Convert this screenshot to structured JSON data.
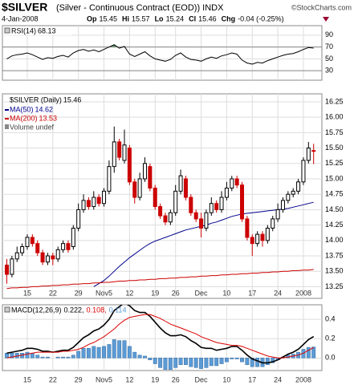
{
  "header": {
    "symbol": "$SILVER",
    "description": "(Silver - Continuous Contract (EOD)) INDX",
    "credit": "©StockCharts.com",
    "date": "4-Jan-2008",
    "quote_labels": [
      "Op",
      "Hi",
      "Lo",
      "Cl",
      "Chg"
    ],
    "change": "-0.04 (-0.25%)"
  },
  "chart_data": [
    {
      "type": "candlestick",
      "name": "$SILVER (Daily)",
      "extra_legend": "Volume undef",
      "xticks": [
        {
          "value": 4,
          "label": "15"
        },
        {
          "value": 9,
          "label": "22"
        },
        {
          "value": 14,
          "label": "29"
        },
        {
          "value": 19,
          "label": "Nov5"
        },
        {
          "value": 24,
          "label": "12"
        },
        {
          "value": 29,
          "label": "19"
        },
        {
          "value": 33,
          "label": "26"
        },
        {
          "value": 38,
          "label": "Dec"
        },
        {
          "value": 43,
          "label": "10"
        },
        {
          "value": 48,
          "label": "17"
        },
        {
          "value": 53,
          "label": "24"
        },
        {
          "value": 58,
          "label": "2008"
        }
      ],
      "ylim": [
        13.06,
        16.38
      ],
      "yticks": [
        {
          "value": 16.25,
          "label": "16.25"
        },
        {
          "value": 16,
          "label": "16.00"
        },
        {
          "value": 15.75,
          "label": "15.75"
        },
        {
          "value": 15.5,
          "label": "15.50"
        },
        {
          "value": 15.25,
          "label": "15.25"
        },
        {
          "value": 15,
          "label": "15.00"
        },
        {
          "value": 14.75,
          "label": "14.75"
        },
        {
          "value": 14.5,
          "label": "14.50"
        },
        {
          "value": 14.25,
          "label": "14.25"
        },
        {
          "value": 14,
          "label": "14.00"
        },
        {
          "value": 13.75,
          "label": "13.75"
        },
        {
          "value": 13.5,
          "label": "13.50"
        },
        {
          "value": 13.25,
          "label": "13.25"
        }
      ],
      "grid": true,
      "up_color": "#000000",
      "down_color": "#cc0000",
      "open": [
        13.6,
        13.45,
        13.7,
        13.8,
        13.9,
        14.05,
        13.95,
        13.8,
        13.65,
        13.75,
        13.7,
        13.85,
        13.95,
        13.9,
        14.2,
        14.5,
        14.65,
        14.55,
        14.7,
        14.6,
        14.8,
        15.2,
        15.6,
        15.3,
        15.5,
        14.95,
        14.7,
        15.0,
        15.2,
        14.85,
        14.55,
        14.4,
        14.3,
        14.45,
        14.8,
        15.0,
        14.7,
        14.45,
        14.35,
        14.2,
        14.45,
        14.6,
        14.5,
        14.7,
        14.85,
        15.0,
        14.9,
        14.35,
        14.05,
        13.95,
        14.1,
        14.0,
        14.2,
        14.35,
        14.5,
        14.65,
        14.75,
        14.8,
        14.95,
        15.3,
        15.45
      ],
      "high": [
        13.7,
        13.75,
        13.9,
        13.95,
        14.1,
        14.1,
        14.0,
        13.85,
        13.8,
        13.8,
        13.9,
        14.0,
        14.0,
        14.25,
        14.6,
        14.75,
        14.7,
        14.8,
        14.75,
        14.85,
        15.3,
        15.85,
        15.65,
        15.8,
        15.55,
        15.0,
        15.1,
        15.35,
        15.25,
        14.9,
        14.6,
        14.45,
        14.5,
        14.9,
        15.15,
        15.05,
        14.75,
        14.5,
        14.45,
        14.5,
        14.7,
        14.65,
        14.8,
        14.95,
        15.05,
        15.05,
        14.95,
        14.4,
        14.1,
        14.15,
        14.15,
        14.25,
        14.4,
        14.6,
        14.7,
        14.8,
        14.85,
        15.0,
        15.35,
        15.6,
        15.57
      ],
      "low": [
        13.3,
        13.4,
        13.65,
        13.75,
        13.85,
        13.9,
        13.75,
        13.6,
        13.6,
        13.6,
        13.65,
        13.8,
        13.8,
        13.85,
        14.15,
        14.45,
        14.5,
        14.5,
        14.55,
        14.55,
        14.75,
        15.1,
        15.3,
        15.25,
        14.9,
        14.6,
        14.65,
        14.95,
        14.8,
        14.5,
        14.35,
        14.25,
        14.25,
        14.4,
        14.75,
        14.65,
        14.4,
        14.3,
        14.05,
        14.15,
        14.4,
        14.45,
        14.45,
        14.65,
        14.8,
        14.85,
        14.3,
        14.0,
        13.75,
        13.9,
        13.9,
        13.95,
        14.15,
        14.3,
        14.45,
        14.6,
        14.7,
        14.75,
        14.9,
        15.25,
        15.24
      ],
      "close": [
        13.45,
        13.7,
        13.8,
        13.9,
        14.05,
        13.95,
        13.8,
        13.65,
        13.75,
        13.7,
        13.85,
        13.95,
        13.85,
        14.2,
        14.5,
        14.65,
        14.55,
        14.7,
        14.6,
        14.8,
        15.2,
        15.6,
        15.35,
        15.55,
        14.95,
        14.7,
        15.0,
        15.25,
        14.85,
        14.55,
        14.4,
        14.3,
        14.45,
        14.8,
        15.05,
        14.7,
        14.45,
        14.35,
        14.2,
        14.45,
        14.6,
        14.5,
        14.7,
        14.85,
        15.0,
        14.9,
        14.35,
        14.05,
        13.95,
        14.1,
        14.0,
        14.2,
        14.35,
        14.5,
        14.65,
        14.75,
        14.8,
        14.95,
        15.3,
        15.5,
        15.46
      ],
      "series": [
        {
          "name": "MA(50)",
          "color": "#00008b",
          "values": [
            null,
            null,
            null,
            null,
            null,
            null,
            null,
            null,
            null,
            null,
            null,
            null,
            null,
            null,
            null,
            null,
            null,
            13.25,
            13.3,
            13.35,
            13.42,
            13.5,
            13.58,
            13.65,
            13.72,
            13.78,
            13.84,
            13.9,
            13.95,
            13.99,
            14.02,
            14.05,
            14.08,
            14.11,
            14.14,
            14.17,
            14.19,
            14.21,
            14.23,
            14.25,
            14.28,
            14.3,
            14.33,
            14.36,
            14.39,
            14.41,
            14.43,
            14.44,
            14.45,
            14.46,
            14.47,
            14.48,
            14.49,
            14.5,
            14.51,
            14.52,
            14.54,
            14.56,
            14.58,
            14.6,
            14.62
          ]
        },
        {
          "name": "MA(200)",
          "color": "#cc0000",
          "values": [
            13.22,
            13.23,
            13.23,
            13.24,
            13.24,
            13.25,
            13.25,
            13.26,
            13.26,
            13.27,
            13.27,
            13.28,
            13.28,
            13.29,
            13.29,
            13.3,
            13.3,
            13.31,
            13.31,
            13.32,
            13.32,
            13.33,
            13.34,
            13.34,
            13.35,
            13.35,
            13.36,
            13.36,
            13.37,
            13.37,
            13.38,
            13.38,
            13.39,
            13.39,
            13.4,
            13.4,
            13.41,
            13.41,
            13.42,
            13.42,
            13.43,
            13.43,
            13.44,
            13.44,
            13.45,
            13.45,
            13.46,
            13.46,
            13.47,
            13.47,
            13.48,
            13.48,
            13.49,
            13.49,
            13.5,
            13.5,
            13.51,
            13.51,
            13.52,
            13.52,
            13.53
          ]
        }
      ]
    },
    {
      "type": "line",
      "ylim": [
        14,
        106
      ],
      "yticks": [
        90,
        70,
        50,
        30
      ],
      "levels": [
        70,
        30
      ],
      "fill_above": 70,
      "fill_color": "#4f9a5a",
      "grid": true,
      "series": [
        {
          "name": "RSI(14)",
          "color": "#000000",
          "values": [
            50,
            55,
            57,
            58,
            60,
            57,
            53,
            49,
            52,
            51,
            54,
            56,
            53,
            60,
            64,
            66,
            63,
            65,
            62,
            66,
            70,
            74,
            68,
            71,
            58,
            54,
            58,
            62,
            55,
            50,
            48,
            46,
            49,
            56,
            60,
            53,
            49,
            48,
            46,
            50,
            53,
            51,
            55,
            57,
            60,
            58,
            48,
            43,
            41,
            44,
            43,
            47,
            50,
            53,
            56,
            58,
            59,
            62,
            66,
            69,
            68.13
          ]
        }
      ]
    },
    {
      "type": "macd",
      "ylim": [
        -0.13,
        0.55
      ],
      "yticks": [
        0.4,
        0.2,
        {
          "value": 0,
          "label": "0.0"
        }
      ],
      "grid": true,
      "legend_values": [
        "0.222,",
        "0.108,",
        "0.114"
      ],
      "series": [
        {
          "name": "MACD(12,26,9)",
          "color": "#000000",
          "values": [
            0.05,
            0.06,
            0.07,
            0.08,
            0.1,
            0.1,
            0.09,
            0.07,
            0.07,
            0.06,
            0.07,
            0.08,
            0.08,
            0.11,
            0.16,
            0.21,
            0.24,
            0.28,
            0.3,
            0.34,
            0.4,
            0.49,
            0.53,
            0.57,
            0.54,
            0.49,
            0.47,
            0.47,
            0.43,
            0.37,
            0.31,
            0.26,
            0.23,
            0.23,
            0.24,
            0.22,
            0.18,
            0.15,
            0.11,
            0.1,
            0.1,
            0.08,
            0.09,
            0.1,
            0.12,
            0.12,
            0.08,
            0.03,
            -0.01,
            -0.03,
            -0.05,
            -0.05,
            -0.04,
            -0.02,
            0.01,
            0.04,
            0.06,
            0.09,
            0.14,
            0.19,
            0.222
          ]
        },
        {
          "color": "#dd0000",
          "values": [
            0,
            0.01,
            0.02,
            0.03,
            0.04,
            0.05,
            0.06,
            0.06,
            0.06,
            0.06,
            0.06,
            0.07,
            0.07,
            0.08,
            0.09,
            0.11,
            0.14,
            0.16,
            0.19,
            0.22,
            0.26,
            0.3,
            0.35,
            0.39,
            0.42,
            0.43,
            0.44,
            0.45,
            0.45,
            0.43,
            0.41,
            0.38,
            0.35,
            0.33,
            0.31,
            0.29,
            0.27,
            0.25,
            0.22,
            0.2,
            0.18,
            0.16,
            0.15,
            0.14,
            0.13,
            0.13,
            0.12,
            0.1,
            0.08,
            0.06,
            0.04,
            0.02,
            0.01,
            0,
            0,
            0.01,
            0.02,
            0.03,
            0.05,
            0.08,
            0.108
          ]
        },
        {
          "color": "#5b9bd5",
          "histogram": true,
          "values": [
            0.05,
            0.05,
            0.05,
            0.05,
            0.06,
            0.05,
            0.03,
            0.01,
            0.01,
            0,
            0.01,
            0.01,
            0.01,
            0.03,
            0.07,
            0.1,
            0.1,
            0.12,
            0.11,
            0.12,
            0.14,
            0.19,
            0.18,
            0.18,
            0.12,
            0.06,
            0.03,
            0.02,
            -0.02,
            -0.06,
            -0.1,
            -0.12,
            -0.12,
            -0.1,
            -0.07,
            -0.07,
            -0.09,
            -0.1,
            -0.11,
            -0.1,
            -0.08,
            -0.08,
            -0.06,
            -0.04,
            -0.01,
            -0.01,
            -0.04,
            -0.07,
            -0.09,
            -0.09,
            -0.09,
            -0.07,
            -0.05,
            -0.02,
            0.01,
            0.03,
            0.04,
            0.06,
            0.09,
            0.11,
            0.114
          ]
        }
      ]
    }
  ]
}
